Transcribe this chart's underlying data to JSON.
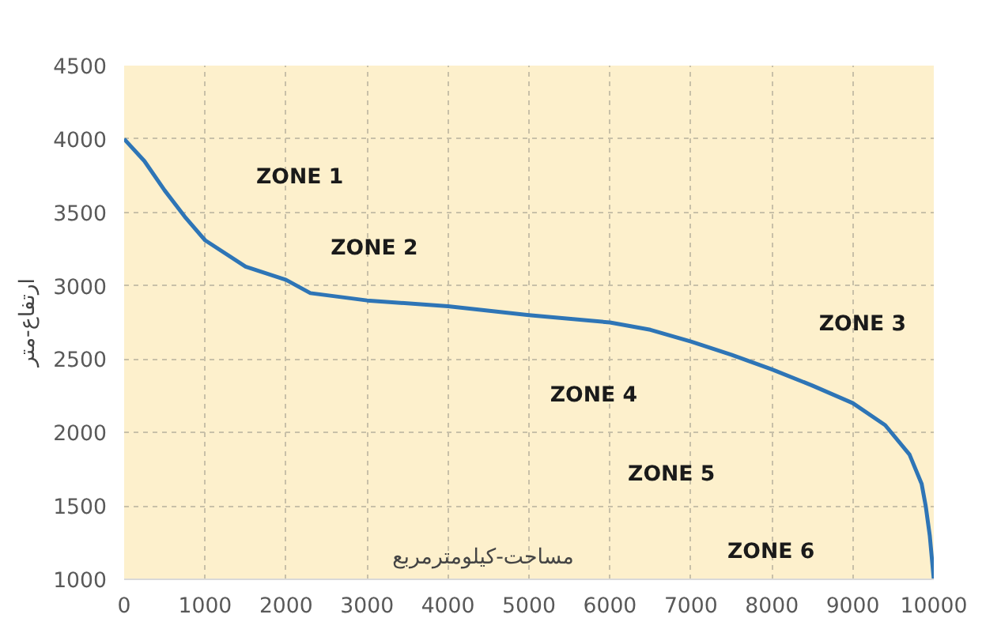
{
  "chart_data": {
    "type": "line",
    "xlabel": "مساحت-کیلومترمربع",
    "ylabel": "ارتفاع-متر",
    "x": [
      0,
      250,
      500,
      750,
      1000,
      1500,
      2000,
      2300,
      3000,
      4000,
      5000,
      6000,
      6500,
      7000,
      7500,
      8000,
      8500,
      9000,
      9400,
      9700,
      9850,
      9900,
      9950,
      10000
    ],
    "series": [
      {
        "color": "#2e75b6",
        "values": [
          4000,
          3850,
          3650,
          3470,
          3310,
          3130,
          3040,
          2950,
          2900,
          2860,
          2800,
          2750,
          2700,
          2620,
          2530,
          2430,
          2320,
          2200,
          2050,
          1850,
          1650,
          1500,
          1300,
          1000
        ]
      }
    ],
    "xlim": [
      0,
      10000
    ],
    "ylim": [
      1000,
      4500
    ],
    "xticks": [
      0,
      1000,
      2000,
      3000,
      4000,
      5000,
      6000,
      7000,
      8000,
      9000,
      10000
    ],
    "yticks": [
      1000,
      1500,
      2000,
      2500,
      3000,
      3500,
      4000,
      4500
    ],
    "grid": true,
    "marker": "none",
    "line_style": "solid",
    "annotations": [
      "ZONE 1",
      "ZONE 2",
      "ZONE 3",
      "ZONE 4",
      "ZONE 5",
      "ZONE 6"
    ]
  }
}
